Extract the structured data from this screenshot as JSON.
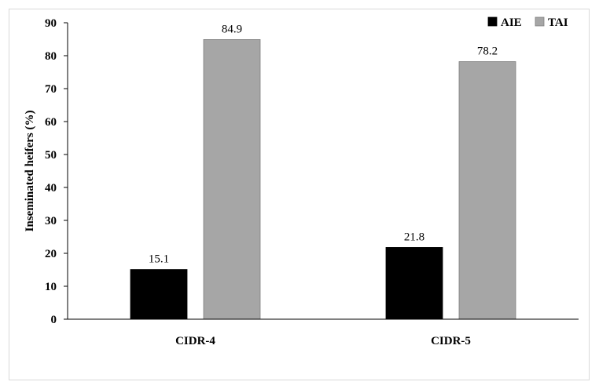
{
  "chart_data": {
    "type": "bar",
    "categories": [
      "CIDR-4",
      "CIDR-5"
    ],
    "series": [
      {
        "name": "AIE",
        "values": [
          15.1,
          21.8
        ],
        "color": "#000000"
      },
      {
        "name": "TAI",
        "values": [
          84.9,
          78.2
        ],
        "color": "#a6a6a6"
      }
    ],
    "data_labels": [
      [
        "15.1",
        "21.8"
      ],
      [
        "84.9",
        "78.2"
      ]
    ],
    "title": "",
    "xlabel": "",
    "ylabel": "Inseminated heifers (%)",
    "ylim": [
      0,
      90
    ],
    "yticks": [
      0,
      10,
      20,
      30,
      40,
      50,
      60,
      70,
      80,
      90
    ],
    "grid": false,
    "legend_position": "top-right"
  }
}
